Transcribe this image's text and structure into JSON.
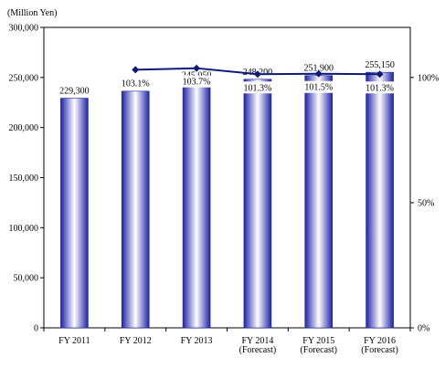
{
  "chart_data": {
    "type": "bar",
    "title": "",
    "ylabel": "(Million Yen)",
    "categories": [
      [
        "FY 2011"
      ],
      [
        "FY 2012"
      ],
      [
        "FY 2013"
      ],
      [
        "FY 2014",
        "(Forecast)"
      ],
      [
        "FY 2015",
        "(Forecast)"
      ],
      [
        "FY 2016",
        "(Forecast)"
      ]
    ],
    "series": [
      {
        "type": "bar",
        "values": [
          229300,
          236300,
          245050,
          248200,
          251900,
          255150
        ],
        "labels": [
          "229,300",
          "236,300",
          "245,050",
          "248,200",
          "251,900",
          "255,150"
        ]
      },
      {
        "type": "line",
        "axis": "right",
        "values": [
          null,
          103.1,
          103.7,
          101.3,
          101.5,
          101.3
        ],
        "labels": [
          "",
          "103.1%",
          "103.7%",
          "101.3%",
          "101.5%",
          "101.3%"
        ]
      }
    ],
    "ylim": [
      0,
      300000
    ],
    "yticks": [
      0,
      50000,
      100000,
      150000,
      200000,
      250000,
      300000
    ],
    "ytick_labels": [
      "0",
      "50,000",
      "100,000",
      "150,000",
      "200,000",
      "250,000",
      "300,000"
    ],
    "y2lim": [
      0,
      120
    ],
    "y2ticks": [
      0,
      50,
      100
    ],
    "y2tick_labels": [
      "0%",
      "50%",
      "100%"
    ],
    "grid": false,
    "legend": "none",
    "colors": {
      "bar_edge": "#1e22a8",
      "bar_mid": "#ffffff",
      "line": "#0d1a7a",
      "axis": "#000000"
    }
  }
}
